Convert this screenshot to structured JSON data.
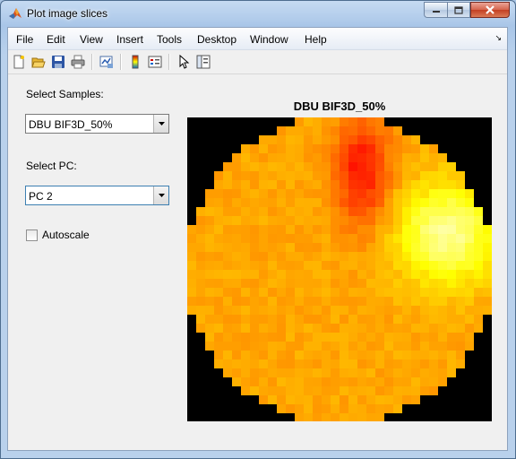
{
  "window": {
    "title": "Plot image slices"
  },
  "menu": [
    "File",
    "Edit",
    "View",
    "Insert",
    "Tools",
    "Desktop",
    "Window",
    "Help"
  ],
  "toolbar": {
    "icons": [
      "new-figure-icon",
      "open-icon",
      "save-icon",
      "print-icon",
      "link-plot-icon",
      "colorbar-icon",
      "legend-icon",
      "pointer-icon",
      "property-editor-icon"
    ]
  },
  "controls": {
    "samples_label": "Select Samples:",
    "samples_value": "DBU BIF3D_50%",
    "pc_label": "Select PC:",
    "pc_value": "PC 2",
    "autoscale_label": "Autoscale",
    "autoscale_checked": false
  },
  "plot": {
    "title": "DBU BIF3D_50%",
    "colormap": "hot",
    "background": "#000000"
  },
  "colors": {
    "chrome": "#f0f0f0",
    "close_button": "#c9452a",
    "plot_bg": "#000000"
  }
}
